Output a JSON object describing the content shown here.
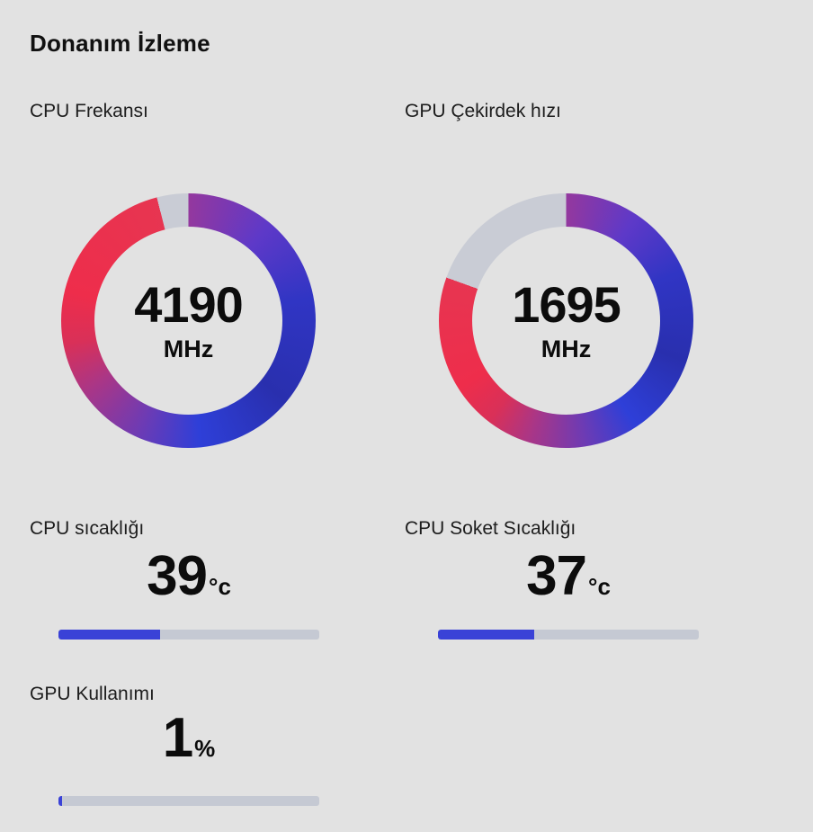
{
  "header": {
    "title": "Donanım İzleme"
  },
  "colors": {
    "background": "#e2e2e2",
    "accent_blue": "#3a42d7",
    "track_gray": "#c5c9d3",
    "gap_gray": "#c9ccd5",
    "text_dark": "#161616",
    "ring_stops": [
      {
        "p": 0.0,
        "c": "#94389e"
      },
      {
        "p": 0.115,
        "c": "#5e39c8"
      },
      {
        "p": 0.23,
        "c": "#3035c4"
      },
      {
        "p": 0.375,
        "c": "#292fae"
      },
      {
        "p": 0.505,
        "c": "#2e3fd8"
      },
      {
        "p": 0.59,
        "c": "#6d3bb4"
      },
      {
        "p": 0.68,
        "c": "#a93687"
      },
      {
        "p": 0.75,
        "c": "#d93058"
      },
      {
        "p": 0.82,
        "c": "#ee2d4b"
      },
      {
        "p": 1.0,
        "c": "#e73551"
      }
    ]
  },
  "chart_data": [
    {
      "type": "donut-gauge",
      "label": "CPU Frekansı",
      "value": "4190",
      "unit": "MHz",
      "fill_pct": 96
    },
    {
      "type": "donut-gauge",
      "label": "GPU Çekirdek hızı",
      "value": "1695",
      "unit": "MHz",
      "fill_pct": 80.5
    },
    {
      "type": "progress-gauge",
      "label": "CPU sıcaklığı",
      "value": "39",
      "unit": "°c",
      "fill_pct": 39
    },
    {
      "type": "progress-gauge",
      "label": "CPU Soket Sıcaklığı",
      "value": "37",
      "unit": "°c",
      "fill_pct": 37
    },
    {
      "type": "progress-gauge",
      "label": "GPU Kullanımı",
      "value": "1",
      "unit": "%",
      "fill_pct": 1.5
    }
  ]
}
